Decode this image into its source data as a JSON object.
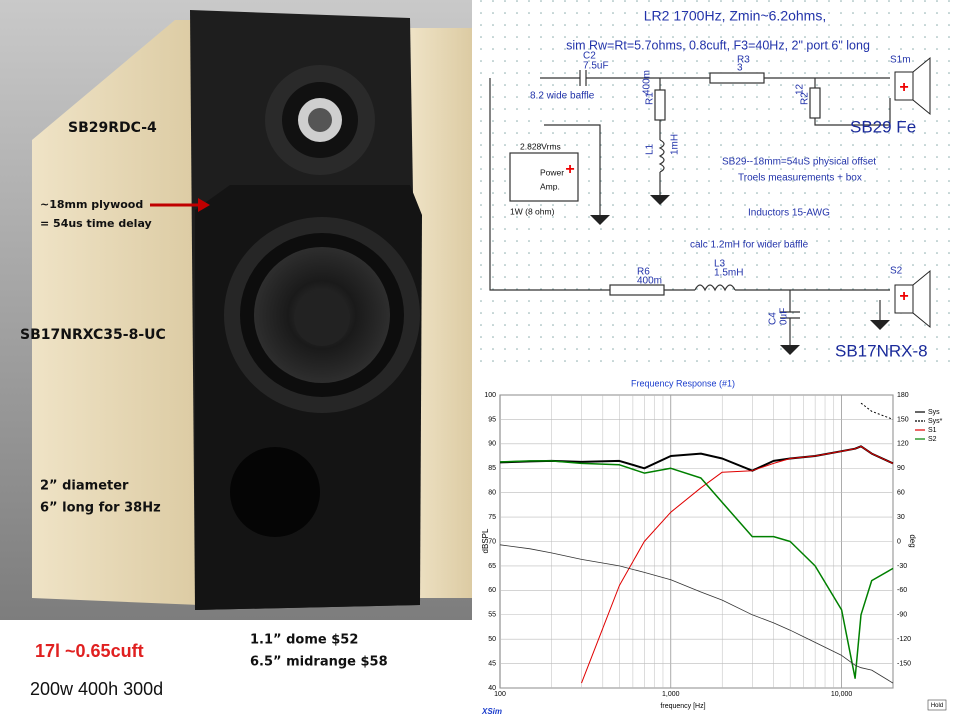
{
  "photo_labels": [
    "SB29RDC-4",
    "~18mm plywood",
    "= 54us time delay",
    "SB17NRXC35-8-UC",
    "2” diameter",
    "6” long  for 38Hz"
  ],
  "notes": [
    "17l ~0.65cuft",
    "200w 400h 300d",
    "1.1” dome $52",
    "6.5” midrange  $58"
  ],
  "schematic": {
    "title": [
      "LR2 1700Hz, Zmin~6.2ohms,",
      "sim Rw=Rt=5.7ohms, 0.8cuft, F3=40Hz, 2\" port 6\" long"
    ],
    "labels": [
      "C2",
      "7.5uF",
      "8.2 wide baffle",
      "R3",
      "3",
      "S1m",
      "R1",
      "400m",
      "R2",
      "12",
      "L1",
      "1mH",
      "2.828Vrms",
      "Power",
      "Amp.",
      "1W (8 ohm)",
      "SB29 Fe",
      "SB29--18mm=54uS physical offset",
      "Troels measurements + box",
      "Inductors 15-AWG",
      "calc 1.2mH for wider baffle",
      "R6",
      "400m",
      "L3",
      "1.5mH",
      "C4",
      "0uF",
      "S2",
      "SB17NRX-8"
    ]
  },
  "chart_data": {
    "type": "line",
    "title": "Frequency Response (#1)",
    "xlabel": "frequency [Hz]",
    "ylabel": "dBSPL",
    "y2label": "deg",
    "footer": "XSim",
    "button": "Hold",
    "xscale": "log",
    "grid": true,
    "legend": "top-right",
    "x": [
      100,
      150,
      200,
      300,
      500,
      700,
      1000,
      1500,
      2000,
      3000,
      4000,
      5000,
      7000,
      10000,
      12000,
      13000,
      15000,
      20000
    ],
    "xlim": [
      100,
      20000
    ],
    "xticks": [
      100,
      {
        "value": 1000,
        "label": "1,000"
      },
      {
        "value": 10000,
        "label": "10,000"
      }
    ],
    "xminorticks": [
      200,
      300,
      400,
      500,
      600,
      700,
      800,
      900,
      2000,
      3000,
      4000,
      5000,
      6000,
      7000,
      8000,
      9000,
      20000
    ],
    "ylim": [
      40,
      100
    ],
    "yticks": [
      40,
      45,
      50,
      55,
      60,
      65,
      70,
      75,
      80,
      85,
      90,
      95,
      100
    ],
    "y2lim": [
      -180,
      180
    ],
    "y2ticks": [
      -150,
      -120,
      -90,
      -60,
      -30,
      0,
      30,
      60,
      90,
      120,
      150,
      180
    ],
    "series": [
      {
        "name": "Sys",
        "color": "#000000",
        "width": 2,
        "values": [
          86.2,
          86.4,
          86.5,
          86.3,
          86.5,
          85,
          87.5,
          88,
          87,
          84.5,
          86.5,
          87,
          87.5,
          88.5,
          89,
          89.5,
          88,
          86
        ]
      },
      {
        "name": "Sys*",
        "color": "#000000",
        "width": 1,
        "dashed": true,
        "axis": "y2",
        "values": [
          null,
          null,
          null,
          null,
          null,
          null,
          null,
          null,
          null,
          null,
          null,
          null,
          null,
          null,
          null,
          170,
          160,
          150
        ]
      },
      {
        "name": "S1",
        "color": "#e00000",
        "width": 1,
        "values": [
          null,
          null,
          null,
          41,
          61,
          70,
          76,
          81,
          84.2,
          84.5,
          86,
          87,
          87.5,
          88.5,
          89,
          89.5,
          88,
          86
        ]
      },
      {
        "name": "S2",
        "color": "#008000",
        "width": 1.5,
        "values": [
          86.3,
          86.5,
          86.5,
          86,
          85.7,
          84,
          85,
          83,
          78,
          71,
          71,
          70,
          65,
          56,
          42,
          55,
          62,
          64.5
        ]
      },
      {
        "color": "#333333",
        "width": 0.8,
        "axis": "y2",
        "values": [
          -4,
          -9,
          -14,
          -22,
          -30,
          -38,
          -47,
          -62,
          -72,
          -90,
          -100,
          -109,
          -124,
          -140,
          -152,
          -155,
          -158,
          -174
        ]
      }
    ]
  }
}
